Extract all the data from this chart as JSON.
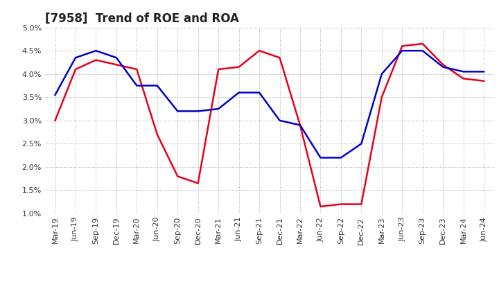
{
  "title": "[7958]  Trend of ROE and ROA",
  "labels": [
    "Mar-19",
    "Jun-19",
    "Sep-19",
    "Dec-19",
    "Mar-20",
    "Jun-20",
    "Sep-20",
    "Dec-20",
    "Mar-21",
    "Jun-21",
    "Sep-21",
    "Dec-21",
    "Mar-22",
    "Jun-22",
    "Sep-22",
    "Dec-22",
    "Mar-23",
    "Jun-23",
    "Sep-23",
    "Dec-23",
    "Mar-24",
    "Jun-24"
  ],
  "roe": [
    3.0,
    4.1,
    4.3,
    4.2,
    4.1,
    2.7,
    1.8,
    1.65,
    4.1,
    4.15,
    4.5,
    4.35,
    2.9,
    1.15,
    1.2,
    1.2,
    3.5,
    4.6,
    4.65,
    4.2,
    3.9,
    3.85
  ],
  "roa": [
    3.55,
    4.35,
    4.5,
    4.35,
    3.75,
    3.75,
    3.2,
    3.2,
    3.25,
    3.6,
    3.6,
    3.0,
    2.9,
    2.2,
    2.2,
    2.5,
    4.0,
    4.5,
    4.5,
    4.15,
    4.05,
    4.05
  ],
  "roe_color": "#e8001c",
  "roa_color": "#0000cc",
  "ylim": [
    1.0,
    5.0
  ],
  "background_color": "#ffffff",
  "grid_color": "#999999",
  "title_fontsize": 12,
  "tick_fontsize": 8,
  "legend_fontsize": 10
}
